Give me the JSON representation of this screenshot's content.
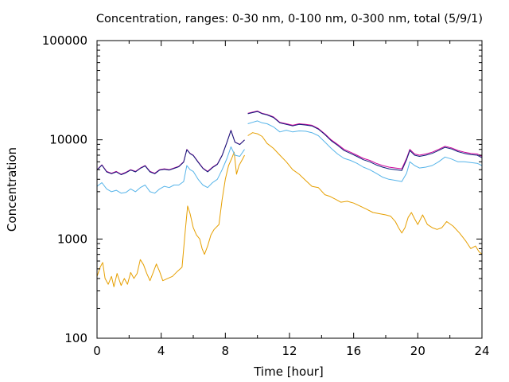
{
  "chart_data": {
    "type": "line",
    "title": "Concentration, ranges: 0-30 nm, 0-100 nm, 0-300 nm, total (5/9/1)",
    "xlabel": "Time [hour]",
    "ylabel": "Concentration",
    "xlim": [
      0,
      24
    ],
    "ylim": [
      100,
      100000
    ],
    "yscale": "log",
    "x_ticks": [
      0,
      4,
      8,
      12,
      16,
      20,
      24
    ],
    "x_tick_labels": [
      "0",
      "4",
      "8",
      "12",
      "16",
      "20",
      "24"
    ],
    "y_ticks": [
      100,
      1000,
      10000,
      100000
    ],
    "y_tick_labels": [
      "100",
      "1000",
      "10000",
      "100000"
    ],
    "grid": false,
    "series": [
      {
        "color": "#e69f00",
        "points": [
          [
            0,
            420
          ],
          [
            0.2,
            520
          ],
          [
            0.35,
            580
          ],
          [
            0.5,
            400
          ],
          [
            0.7,
            350
          ],
          [
            0.9,
            420
          ],
          [
            1.05,
            330
          ],
          [
            1.25,
            450
          ],
          [
            1.5,
            340
          ],
          [
            1.7,
            400
          ],
          [
            1.9,
            350
          ],
          [
            2.1,
            460
          ],
          [
            2.3,
            400
          ],
          [
            2.5,
            450
          ],
          [
            2.7,
            620
          ],
          [
            2.9,
            550
          ],
          [
            3.1,
            450
          ],
          [
            3.3,
            380
          ],
          [
            3.5,
            460
          ],
          [
            3.7,
            560
          ],
          [
            3.9,
            470
          ],
          [
            4.1,
            380
          ],
          [
            4.4,
            400
          ],
          [
            4.7,
            420
          ],
          [
            5.0,
            470
          ],
          [
            5.3,
            520
          ],
          [
            5.5,
            1200
          ],
          [
            5.65,
            2150
          ],
          [
            5.8,
            1800
          ],
          [
            6.0,
            1300
          ],
          [
            6.2,
            1100
          ],
          [
            6.4,
            1000
          ],
          [
            6.55,
            800
          ],
          [
            6.7,
            700
          ],
          [
            6.9,
            850
          ],
          [
            7.1,
            1100
          ],
          [
            7.3,
            1250
          ],
          [
            7.6,
            1400
          ],
          [
            7.8,
            2500
          ],
          [
            8.0,
            4000
          ],
          [
            8.2,
            5500
          ],
          [
            8.4,
            6500
          ],
          [
            8.55,
            7500
          ],
          [
            8.7,
            4500
          ],
          [
            8.85,
            5500
          ],
          [
            9.1,
            6500
          ],
          [
            9.2,
            7000
          ],
          null,
          [
            9.4,
            11000
          ],
          [
            9.7,
            11800
          ],
          [
            10.0,
            11500
          ],
          [
            10.3,
            10800
          ],
          [
            10.6,
            9200
          ],
          [
            11.0,
            8200
          ],
          [
            11.4,
            7000
          ],
          [
            11.8,
            6000
          ],
          [
            12.2,
            5000
          ],
          [
            12.6,
            4500
          ],
          [
            13.0,
            3900
          ],
          [
            13.4,
            3400
          ],
          [
            13.8,
            3300
          ],
          [
            14.2,
            2800
          ],
          [
            14.5,
            2700
          ],
          [
            14.9,
            2500
          ],
          [
            15.2,
            2350
          ],
          [
            15.6,
            2400
          ],
          [
            16.0,
            2300
          ],
          [
            16.4,
            2150
          ],
          [
            16.8,
            2000
          ],
          [
            17.2,
            1850
          ],
          [
            17.6,
            1800
          ],
          [
            18.0,
            1750
          ],
          [
            18.3,
            1700
          ],
          [
            18.6,
            1500
          ],
          [
            18.8,
            1300
          ],
          [
            19.0,
            1150
          ],
          [
            19.2,
            1300
          ],
          [
            19.4,
            1650
          ],
          [
            19.6,
            1850
          ],
          [
            19.8,
            1600
          ],
          [
            20.0,
            1400
          ],
          [
            20.3,
            1750
          ],
          [
            20.6,
            1400
          ],
          [
            20.9,
            1300
          ],
          [
            21.2,
            1250
          ],
          [
            21.5,
            1300
          ],
          [
            21.8,
            1500
          ],
          [
            22.2,
            1350
          ],
          [
            22.6,
            1150
          ],
          [
            23.0,
            950
          ],
          [
            23.3,
            800
          ],
          [
            23.6,
            850
          ],
          [
            23.8,
            750
          ],
          [
            24,
            700
          ]
        ]
      },
      {
        "color": "#56b4e9",
        "points": [
          [
            0,
            3400
          ],
          [
            0.3,
            3700
          ],
          [
            0.6,
            3200
          ],
          [
            0.9,
            3000
          ],
          [
            1.2,
            3100
          ],
          [
            1.5,
            2900
          ],
          [
            1.8,
            2950
          ],
          [
            2.1,
            3200
          ],
          [
            2.4,
            3000
          ],
          [
            2.7,
            3300
          ],
          [
            3.0,
            3500
          ],
          [
            3.3,
            3000
          ],
          [
            3.6,
            2900
          ],
          [
            3.9,
            3200
          ],
          [
            4.2,
            3400
          ],
          [
            4.5,
            3300
          ],
          [
            4.8,
            3500
          ],
          [
            5.1,
            3500
          ],
          [
            5.4,
            3800
          ],
          [
            5.6,
            5500
          ],
          [
            5.8,
            5000
          ],
          [
            6.0,
            4800
          ],
          [
            6.3,
            4000
          ],
          [
            6.6,
            3500
          ],
          [
            6.9,
            3300
          ],
          [
            7.2,
            3700
          ],
          [
            7.5,
            4000
          ],
          [
            7.8,
            5000
          ],
          [
            8.1,
            6500
          ],
          [
            8.35,
            8500
          ],
          [
            8.6,
            7000
          ],
          [
            8.9,
            6800
          ],
          [
            9.2,
            8000
          ],
          null,
          [
            9.4,
            14500
          ],
          [
            9.7,
            15000
          ],
          [
            10.0,
            15500
          ],
          [
            10.3,
            14800
          ],
          [
            10.6,
            14500
          ],
          [
            11.0,
            13500
          ],
          [
            11.4,
            12000
          ],
          [
            11.8,
            12500
          ],
          [
            12.2,
            12000
          ],
          [
            12.6,
            12300
          ],
          [
            13.0,
            12200
          ],
          [
            13.4,
            11800
          ],
          [
            13.8,
            11000
          ],
          [
            14.2,
            9500
          ],
          [
            14.6,
            8200
          ],
          [
            15.0,
            7200
          ],
          [
            15.4,
            6500
          ],
          [
            15.8,
            6200
          ],
          [
            16.2,
            5800
          ],
          [
            16.6,
            5300
          ],
          [
            17.0,
            5000
          ],
          [
            17.4,
            4600
          ],
          [
            17.8,
            4200
          ],
          [
            18.2,
            4000
          ],
          [
            18.6,
            3900
          ],
          [
            19.0,
            3800
          ],
          [
            19.3,
            4600
          ],
          [
            19.5,
            6000
          ],
          [
            19.8,
            5500
          ],
          [
            20.1,
            5200
          ],
          [
            20.5,
            5300
          ],
          [
            20.9,
            5500
          ],
          [
            21.3,
            6000
          ],
          [
            21.7,
            6700
          ],
          [
            22.1,
            6400
          ],
          [
            22.5,
            6000
          ],
          [
            22.9,
            6000
          ],
          [
            23.3,
            5900
          ],
          [
            23.7,
            5800
          ],
          [
            24,
            5500
          ]
        ]
      },
      {
        "color": "#cc0099",
        "points": [
          [
            0,
            5000
          ],
          [
            0.3,
            5600
          ],
          [
            0.6,
            4800
          ],
          [
            0.9,
            4600
          ],
          [
            1.2,
            4800
          ],
          [
            1.5,
            4500
          ],
          [
            1.8,
            4700
          ],
          [
            2.1,
            5000
          ],
          [
            2.4,
            4800
          ],
          [
            2.7,
            5200
          ],
          [
            3.0,
            5500
          ],
          [
            3.3,
            4800
          ],
          [
            3.6,
            4600
          ],
          [
            3.9,
            5000
          ],
          [
            4.2,
            5100
          ],
          [
            4.5,
            5000
          ],
          [
            4.8,
            5200
          ],
          [
            5.1,
            5400
          ],
          [
            5.4,
            6000
          ],
          [
            5.6,
            8000
          ],
          [
            5.8,
            7300
          ],
          [
            6.0,
            7000
          ],
          [
            6.3,
            6000
          ],
          [
            6.6,
            5200
          ],
          [
            6.9,
            4800
          ],
          [
            7.2,
            5300
          ],
          [
            7.5,
            5700
          ],
          [
            7.8,
            7000
          ],
          [
            8.1,
            9500
          ],
          [
            8.35,
            12500
          ],
          [
            8.6,
            9500
          ],
          [
            8.9,
            9000
          ],
          [
            9.2,
            10000
          ],
          null,
          [
            9.4,
            18500
          ],
          [
            9.7,
            19000
          ],
          [
            10.0,
            19500
          ],
          [
            10.3,
            18500
          ],
          [
            10.6,
            18000
          ],
          [
            11.0,
            17000
          ],
          [
            11.4,
            15000
          ],
          [
            11.8,
            14500
          ],
          [
            12.2,
            14000
          ],
          [
            12.6,
            14500
          ],
          [
            13.0,
            14300
          ],
          [
            13.4,
            14000
          ],
          [
            13.8,
            13000
          ],
          [
            14.2,
            11500
          ],
          [
            14.6,
            10000
          ],
          [
            15.0,
            9000
          ],
          [
            15.4,
            8000
          ],
          [
            15.8,
            7500
          ],
          [
            16.2,
            7000
          ],
          [
            16.6,
            6500
          ],
          [
            17.0,
            6200
          ],
          [
            17.4,
            5800
          ],
          [
            17.8,
            5500
          ],
          [
            18.2,
            5300
          ],
          [
            18.6,
            5200
          ],
          [
            19.0,
            5100
          ],
          [
            19.3,
            6500
          ],
          [
            19.5,
            8000
          ],
          [
            19.8,
            7200
          ],
          [
            20.1,
            7000
          ],
          [
            20.5,
            7200
          ],
          [
            20.9,
            7500
          ],
          [
            21.3,
            8000
          ],
          [
            21.7,
            8600
          ],
          [
            22.1,
            8300
          ],
          [
            22.5,
            7800
          ],
          [
            22.9,
            7500
          ],
          [
            23.3,
            7300
          ],
          [
            23.7,
            7200
          ],
          [
            24,
            6800
          ]
        ]
      },
      {
        "color": "#0d1f7a",
        "points": [
          [
            0,
            4950
          ],
          [
            0.3,
            5550
          ],
          [
            0.6,
            4750
          ],
          [
            0.9,
            4550
          ],
          [
            1.2,
            4750
          ],
          [
            1.5,
            4450
          ],
          [
            1.8,
            4650
          ],
          [
            2.1,
            4950
          ],
          [
            2.4,
            4750
          ],
          [
            2.7,
            5150
          ],
          [
            3.0,
            5450
          ],
          [
            3.3,
            4750
          ],
          [
            3.6,
            4550
          ],
          [
            3.9,
            4950
          ],
          [
            4.2,
            5050
          ],
          [
            4.5,
            4950
          ],
          [
            4.8,
            5150
          ],
          [
            5.1,
            5350
          ],
          [
            5.4,
            5950
          ],
          [
            5.6,
            7950
          ],
          [
            5.8,
            7250
          ],
          [
            6.0,
            6950
          ],
          [
            6.3,
            5950
          ],
          [
            6.6,
            5150
          ],
          [
            6.9,
            4750
          ],
          [
            7.2,
            5250
          ],
          [
            7.5,
            5650
          ],
          [
            7.8,
            6950
          ],
          [
            8.1,
            9450
          ],
          [
            8.35,
            12400
          ],
          [
            8.6,
            9450
          ],
          [
            8.9,
            8950
          ],
          [
            9.2,
            9950
          ],
          null,
          [
            9.4,
            18300
          ],
          [
            9.7,
            18800
          ],
          [
            10.0,
            19300
          ],
          [
            10.3,
            18300
          ],
          [
            10.6,
            17800
          ],
          [
            11.0,
            16800
          ],
          [
            11.4,
            14800
          ],
          [
            11.8,
            14300
          ],
          [
            12.2,
            13800
          ],
          [
            12.6,
            14300
          ],
          [
            13.0,
            14100
          ],
          [
            13.4,
            13800
          ],
          [
            13.8,
            12800
          ],
          [
            14.2,
            11300
          ],
          [
            14.6,
            9800
          ],
          [
            15.0,
            8800
          ],
          [
            15.4,
            7800
          ],
          [
            15.8,
            7300
          ],
          [
            16.2,
            6800
          ],
          [
            16.6,
            6300
          ],
          [
            17.0,
            6000
          ],
          [
            17.4,
            5600
          ],
          [
            17.8,
            5300
          ],
          [
            18.2,
            5100
          ],
          [
            18.6,
            5000
          ],
          [
            19.0,
            4900
          ],
          [
            19.3,
            6300
          ],
          [
            19.5,
            7800
          ],
          [
            19.8,
            7000
          ],
          [
            20.1,
            6800
          ],
          [
            20.5,
            7000
          ],
          [
            20.9,
            7300
          ],
          [
            21.3,
            7800
          ],
          [
            21.7,
            8400
          ],
          [
            22.1,
            8100
          ],
          [
            22.5,
            7600
          ],
          [
            22.9,
            7300
          ],
          [
            23.3,
            7100
          ],
          [
            23.7,
            7000
          ],
          [
            24,
            6600
          ]
        ]
      }
    ]
  }
}
